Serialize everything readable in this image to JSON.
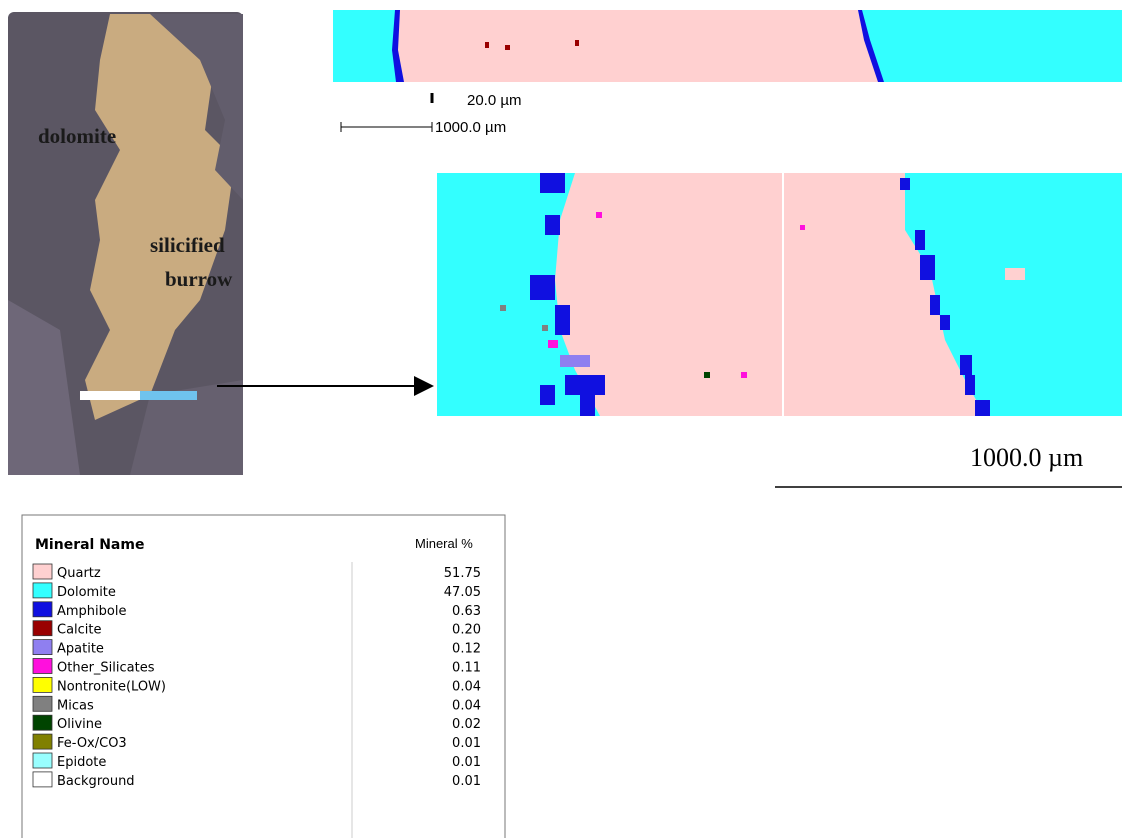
{
  "photo": {
    "label_dolomite": "dolomite",
    "label_burrow_1": "silicified",
    "label_burrow_2": "burrow"
  },
  "scale_top": {
    "small": "20.0 µm",
    "large": "1000.0 µm"
  },
  "scale_bottom": "1000.0 µm",
  "table": {
    "headers": [
      "Mineral Name",
      "Mineral %"
    ],
    "rows": [
      {
        "name": "Quartz",
        "percent": "51.75",
        "color": "#ffd0d0"
      },
      {
        "name": "Dolomite",
        "percent": "47.05",
        "color": "#33ffff"
      },
      {
        "name": "Amphibole",
        "percent": "0.63",
        "color": "#1010e0"
      },
      {
        "name": "Calcite",
        "percent": "0.20",
        "color": "#990000"
      },
      {
        "name": "Apatite",
        "percent": "0.12",
        "color": "#8f7ff0"
      },
      {
        "name": "Other_Silicates",
        "percent": "0.11",
        "color": "#ff10dd"
      },
      {
        "name": "Nontronite(LOW)",
        "percent": "0.04",
        "color": "#ffff00"
      },
      {
        "name": "Micas",
        "percent": "0.04",
        "color": "#808080"
      },
      {
        "name": "Olivine",
        "percent": "0.02",
        "color": "#004400"
      },
      {
        "name": "Fe-Ox/CO3",
        "percent": "0.01",
        "color": "#808000"
      },
      {
        "name": "Epidote",
        "percent": "0.01",
        "color": "#99ffff"
      },
      {
        "name": "Background",
        "percent": "0.01",
        "color": "#ffffff"
      }
    ]
  }
}
